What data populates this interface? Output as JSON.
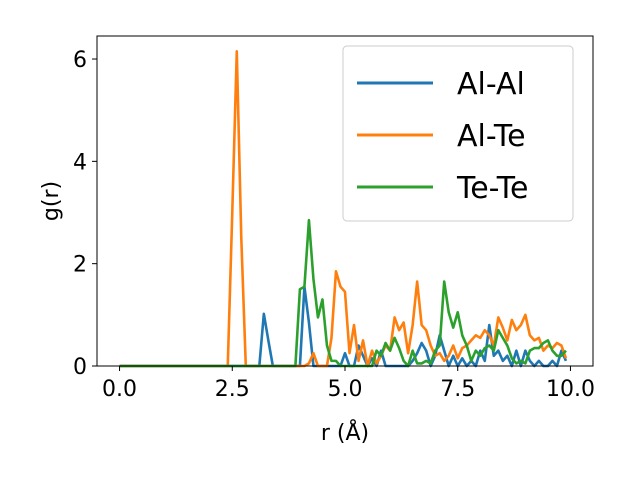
{
  "chart_data": {
    "type": "line",
    "title": "",
    "xlabel": "r (Å)",
    "ylabel": "g(r)",
    "xlim": [
      -0.5,
      10.5
    ],
    "ylim": [
      0,
      6.45
    ],
    "xticks": [
      "0.0",
      "2.5",
      "5.0",
      "7.5",
      "10.0"
    ],
    "yticks": [
      "0",
      "2",
      "4",
      "6"
    ],
    "grid": false,
    "legend": {
      "position": "top-right",
      "entries": [
        "Al-Al",
        "Al-Te",
        "Te-Te"
      ]
    },
    "series": [
      {
        "name": "Al-Al",
        "color": "#1f77b4",
        "points": [
          [
            0.0,
            0
          ],
          [
            3.0,
            0
          ],
          [
            3.1,
            0
          ],
          [
            3.2,
            1.02
          ],
          [
            3.3,
            0.5
          ],
          [
            3.4,
            0
          ],
          [
            4.0,
            0
          ],
          [
            4.1,
            1.55
          ],
          [
            4.2,
            0.85
          ],
          [
            4.3,
            0
          ],
          [
            4.7,
            0
          ],
          [
            4.8,
            0
          ],
          [
            4.9,
            0.0
          ],
          [
            5.0,
            0.25
          ],
          [
            5.1,
            0
          ],
          [
            5.2,
            0
          ],
          [
            5.3,
            0.4
          ],
          [
            5.4,
            0.2
          ],
          [
            5.5,
            0
          ],
          [
            5.6,
            0.15
          ],
          [
            5.7,
            0
          ],
          [
            5.8,
            0.3
          ],
          [
            5.9,
            0.0
          ],
          [
            6.0,
            0
          ],
          [
            6.2,
            0
          ],
          [
            6.4,
            0
          ],
          [
            6.5,
            0.1
          ],
          [
            6.6,
            0.25
          ],
          [
            6.7,
            0.45
          ],
          [
            6.8,
            0.3
          ],
          [
            6.9,
            0.0
          ],
          [
            7.0,
            0.2
          ],
          [
            7.1,
            0.6
          ],
          [
            7.2,
            0.3
          ],
          [
            7.3,
            0
          ],
          [
            7.4,
            0.2
          ],
          [
            7.5,
            0
          ],
          [
            7.6,
            0.15
          ],
          [
            7.7,
            0
          ],
          [
            7.8,
            0.1
          ],
          [
            7.9,
            0
          ],
          [
            8.0,
            0.3
          ],
          [
            8.1,
            0.1
          ],
          [
            8.2,
            0.8
          ],
          [
            8.3,
            0.2
          ],
          [
            8.4,
            0.3
          ],
          [
            8.5,
            0.1
          ],
          [
            8.6,
            0.2
          ],
          [
            8.7,
            0.0
          ],
          [
            8.8,
            0.3
          ],
          [
            8.9,
            0.0
          ],
          [
            9.0,
            0.3
          ],
          [
            9.1,
            0.1
          ],
          [
            9.2,
            0.0
          ],
          [
            9.3,
            0.1
          ],
          [
            9.4,
            0.0
          ],
          [
            9.5,
            0.0
          ],
          [
            9.6,
            0.1
          ],
          [
            9.7,
            0.0
          ],
          [
            9.8,
            0.3
          ],
          [
            9.9,
            0.1
          ]
        ]
      },
      {
        "name": "Al-Te",
        "color": "#ff7f0e",
        "points": [
          [
            0.0,
            0
          ],
          [
            2.3,
            0
          ],
          [
            2.4,
            0
          ],
          [
            2.5,
            3.0
          ],
          [
            2.6,
            6.15
          ],
          [
            2.7,
            2.5
          ],
          [
            2.8,
            0
          ],
          [
            2.9,
            0
          ],
          [
            4.0,
            0
          ],
          [
            4.1,
            0
          ],
          [
            4.2,
            0.05
          ],
          [
            4.3,
            0.25
          ],
          [
            4.4,
            0
          ],
          [
            4.5,
            0
          ],
          [
            4.6,
            0.0
          ],
          [
            4.7,
            0.55
          ],
          [
            4.8,
            1.85
          ],
          [
            4.9,
            1.55
          ],
          [
            5.0,
            1.45
          ],
          [
            5.1,
            0.25
          ],
          [
            5.2,
            0.8
          ],
          [
            5.3,
            0.1
          ],
          [
            5.4,
            0.5
          ],
          [
            5.5,
            0
          ],
          [
            5.6,
            0.3
          ],
          [
            5.7,
            0.05
          ],
          [
            5.8,
            0.2
          ],
          [
            5.9,
            0.4
          ],
          [
            6.0,
            0.3
          ],
          [
            6.1,
            0.95
          ],
          [
            6.2,
            0.7
          ],
          [
            6.3,
            0.85
          ],
          [
            6.4,
            0.25
          ],
          [
            6.5,
            0.8
          ],
          [
            6.6,
            1.65
          ],
          [
            6.7,
            0.8
          ],
          [
            6.8,
            0.7
          ],
          [
            6.9,
            0.4
          ],
          [
            7.0,
            0.2
          ],
          [
            7.1,
            0.25
          ],
          [
            7.2,
            0.1
          ],
          [
            7.3,
            0.2
          ],
          [
            7.4,
            0.4
          ],
          [
            7.5,
            0.15
          ],
          [
            7.6,
            0.35
          ],
          [
            7.7,
            0.4
          ],
          [
            7.8,
            0.5
          ],
          [
            7.9,
            0.6
          ],
          [
            8.0,
            0.55
          ],
          [
            8.1,
            0.7
          ],
          [
            8.2,
            0.6
          ],
          [
            8.3,
            0.4
          ],
          [
            8.4,
            0.95
          ],
          [
            8.5,
            0.75
          ],
          [
            8.6,
            0.5
          ],
          [
            8.7,
            0.9
          ],
          [
            8.8,
            0.7
          ],
          [
            8.9,
            0.8
          ],
          [
            9.0,
            1.0
          ],
          [
            9.1,
            0.6
          ],
          [
            9.2,
            0.5
          ],
          [
            9.3,
            0.55
          ],
          [
            9.4,
            0.3
          ],
          [
            9.5,
            0.4
          ],
          [
            9.6,
            0.35
          ],
          [
            9.7,
            0.45
          ],
          [
            9.8,
            0.4
          ],
          [
            9.9,
            0.15
          ]
        ]
      },
      {
        "name": "Te-Te",
        "color": "#2ca02c",
        "points": [
          [
            0.0,
            0
          ],
          [
            3.8,
            0
          ],
          [
            3.9,
            0
          ],
          [
            4.0,
            1.5
          ],
          [
            4.1,
            1.55
          ],
          [
            4.2,
            2.85
          ],
          [
            4.3,
            1.7
          ],
          [
            4.4,
            0.95
          ],
          [
            4.5,
            1.3
          ],
          [
            4.6,
            0.4
          ],
          [
            4.7,
            0.1
          ],
          [
            4.8,
            0.1
          ],
          [
            4.9,
            0
          ],
          [
            5.0,
            0
          ],
          [
            5.2,
            0
          ],
          [
            5.4,
            0
          ],
          [
            5.6,
            0
          ],
          [
            5.7,
            0.3
          ],
          [
            5.8,
            0.2
          ],
          [
            5.9,
            0.45
          ],
          [
            6.0,
            0.3
          ],
          [
            6.1,
            0.55
          ],
          [
            6.2,
            0.35
          ],
          [
            6.3,
            0.1
          ],
          [
            6.4,
            0.0
          ],
          [
            6.5,
            0.3
          ],
          [
            6.6,
            0.05
          ],
          [
            6.7,
            0.05
          ],
          [
            6.8,
            0.1
          ],
          [
            6.9,
            0.05
          ],
          [
            7.0,
            0.3
          ],
          [
            7.1,
            0.4
          ],
          [
            7.2,
            1.65
          ],
          [
            7.3,
            1.05
          ],
          [
            7.4,
            0.75
          ],
          [
            7.5,
            1.05
          ],
          [
            7.6,
            0.6
          ],
          [
            7.7,
            0.4
          ],
          [
            7.8,
            0.1
          ],
          [
            7.9,
            0.3
          ],
          [
            8.0,
            0.2
          ],
          [
            8.1,
            0.35
          ],
          [
            8.2,
            0.4
          ],
          [
            8.3,
            0.3
          ],
          [
            8.4,
            0.7
          ],
          [
            8.5,
            0.55
          ],
          [
            8.6,
            0.4
          ],
          [
            8.7,
            0.15
          ],
          [
            8.8,
            0.05
          ],
          [
            8.9,
            0.1
          ],
          [
            9.0,
            0.05
          ],
          [
            9.1,
            0.3
          ],
          [
            9.2,
            0.35
          ],
          [
            9.3,
            0.35
          ],
          [
            9.4,
            0.45
          ],
          [
            9.5,
            0.5
          ],
          [
            9.6,
            0.3
          ],
          [
            9.7,
            0.2
          ],
          [
            9.8,
            0.2
          ],
          [
            9.9,
            0.3
          ]
        ]
      }
    ]
  }
}
